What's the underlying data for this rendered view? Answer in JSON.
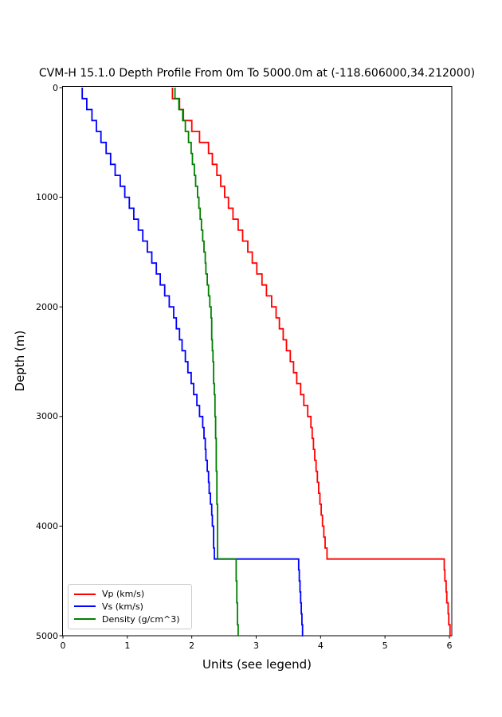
{
  "chart_data": {
    "type": "line",
    "chart_kind": "step-depth-profile",
    "title": "CVM-H 15.1.0 Depth Profile From 0m To 5000.0m at (-118.606000,34.212000)",
    "xlabel": "Units (see legend)",
    "ylabel": "Depth (m)",
    "grid": false,
    "legend_position": "lower-left",
    "axis_color": "#000000",
    "background_color": "#ffffff",
    "x_ticks": [
      0,
      1,
      2,
      3,
      4,
      5,
      6
    ],
    "y_ticks": [
      0,
      1000,
      2000,
      3000,
      4000,
      5000
    ],
    "xlim": [
      0,
      6.04
    ],
    "depth_lim": [
      0,
      5000
    ],
    "depth_axis_inverted": true,
    "sample_interval_m": 100,
    "depths_m": [
      0,
      100,
      200,
      300,
      400,
      500,
      600,
      700,
      800,
      900,
      1000,
      1100,
      1200,
      1300,
      1400,
      1500,
      1600,
      1700,
      1800,
      1900,
      2000,
      2100,
      2200,
      2300,
      2400,
      2500,
      2600,
      2700,
      2800,
      2900,
      3000,
      3100,
      3200,
      3300,
      3400,
      3500,
      3600,
      3700,
      3800,
      3900,
      4000,
      4100,
      4200,
      4300,
      4400,
      4500,
      4600,
      4700,
      4800,
      4900,
      5000
    ],
    "series": [
      {
        "name": "Vp (km/s)",
        "color": "#ff0000",
        "values": [
          1.7,
          1.81,
          1.87,
          2.0,
          2.12,
          2.26,
          2.32,
          2.39,
          2.45,
          2.51,
          2.57,
          2.64,
          2.72,
          2.79,
          2.87,
          2.94,
          3.01,
          3.09,
          3.16,
          3.24,
          3.31,
          3.36,
          3.42,
          3.47,
          3.53,
          3.58,
          3.63,
          3.69,
          3.74,
          3.8,
          3.85,
          3.87,
          3.89,
          3.91,
          3.93,
          3.95,
          3.97,
          3.99,
          4.01,
          4.03,
          4.05,
          4.07,
          4.1,
          5.92,
          5.93,
          5.95,
          5.96,
          5.98,
          5.99,
          6.01,
          6.03
        ]
      },
      {
        "name": "Vs (km/s)",
        "color": "#0000ff",
        "values": [
          0.3,
          0.37,
          0.45,
          0.52,
          0.59,
          0.67,
          0.74,
          0.81,
          0.89,
          0.96,
          1.03,
          1.1,
          1.17,
          1.24,
          1.31,
          1.38,
          1.45,
          1.51,
          1.58,
          1.65,
          1.72,
          1.76,
          1.81,
          1.85,
          1.9,
          1.94,
          1.99,
          2.03,
          2.08,
          2.12,
          2.17,
          2.19,
          2.21,
          2.22,
          2.24,
          2.26,
          2.27,
          2.29,
          2.31,
          2.32,
          2.34,
          2.34,
          2.35,
          3.66,
          3.67,
          3.68,
          3.69,
          3.7,
          3.71,
          3.72,
          3.73
        ]
      },
      {
        "name": "Density (g/cm^3)",
        "color": "#008000",
        "values": [
          1.74,
          1.8,
          1.86,
          1.9,
          1.95,
          1.99,
          2.01,
          2.04,
          2.06,
          2.09,
          2.11,
          2.13,
          2.15,
          2.17,
          2.19,
          2.21,
          2.22,
          2.24,
          2.26,
          2.28,
          2.3,
          2.31,
          2.31,
          2.32,
          2.33,
          2.34,
          2.34,
          2.35,
          2.36,
          2.36,
          2.37,
          2.37,
          2.38,
          2.38,
          2.38,
          2.39,
          2.39,
          2.39,
          2.4,
          2.4,
          2.4,
          2.4,
          2.4,
          2.69,
          2.69,
          2.7,
          2.7,
          2.71,
          2.71,
          2.72,
          2.73
        ]
      }
    ]
  }
}
